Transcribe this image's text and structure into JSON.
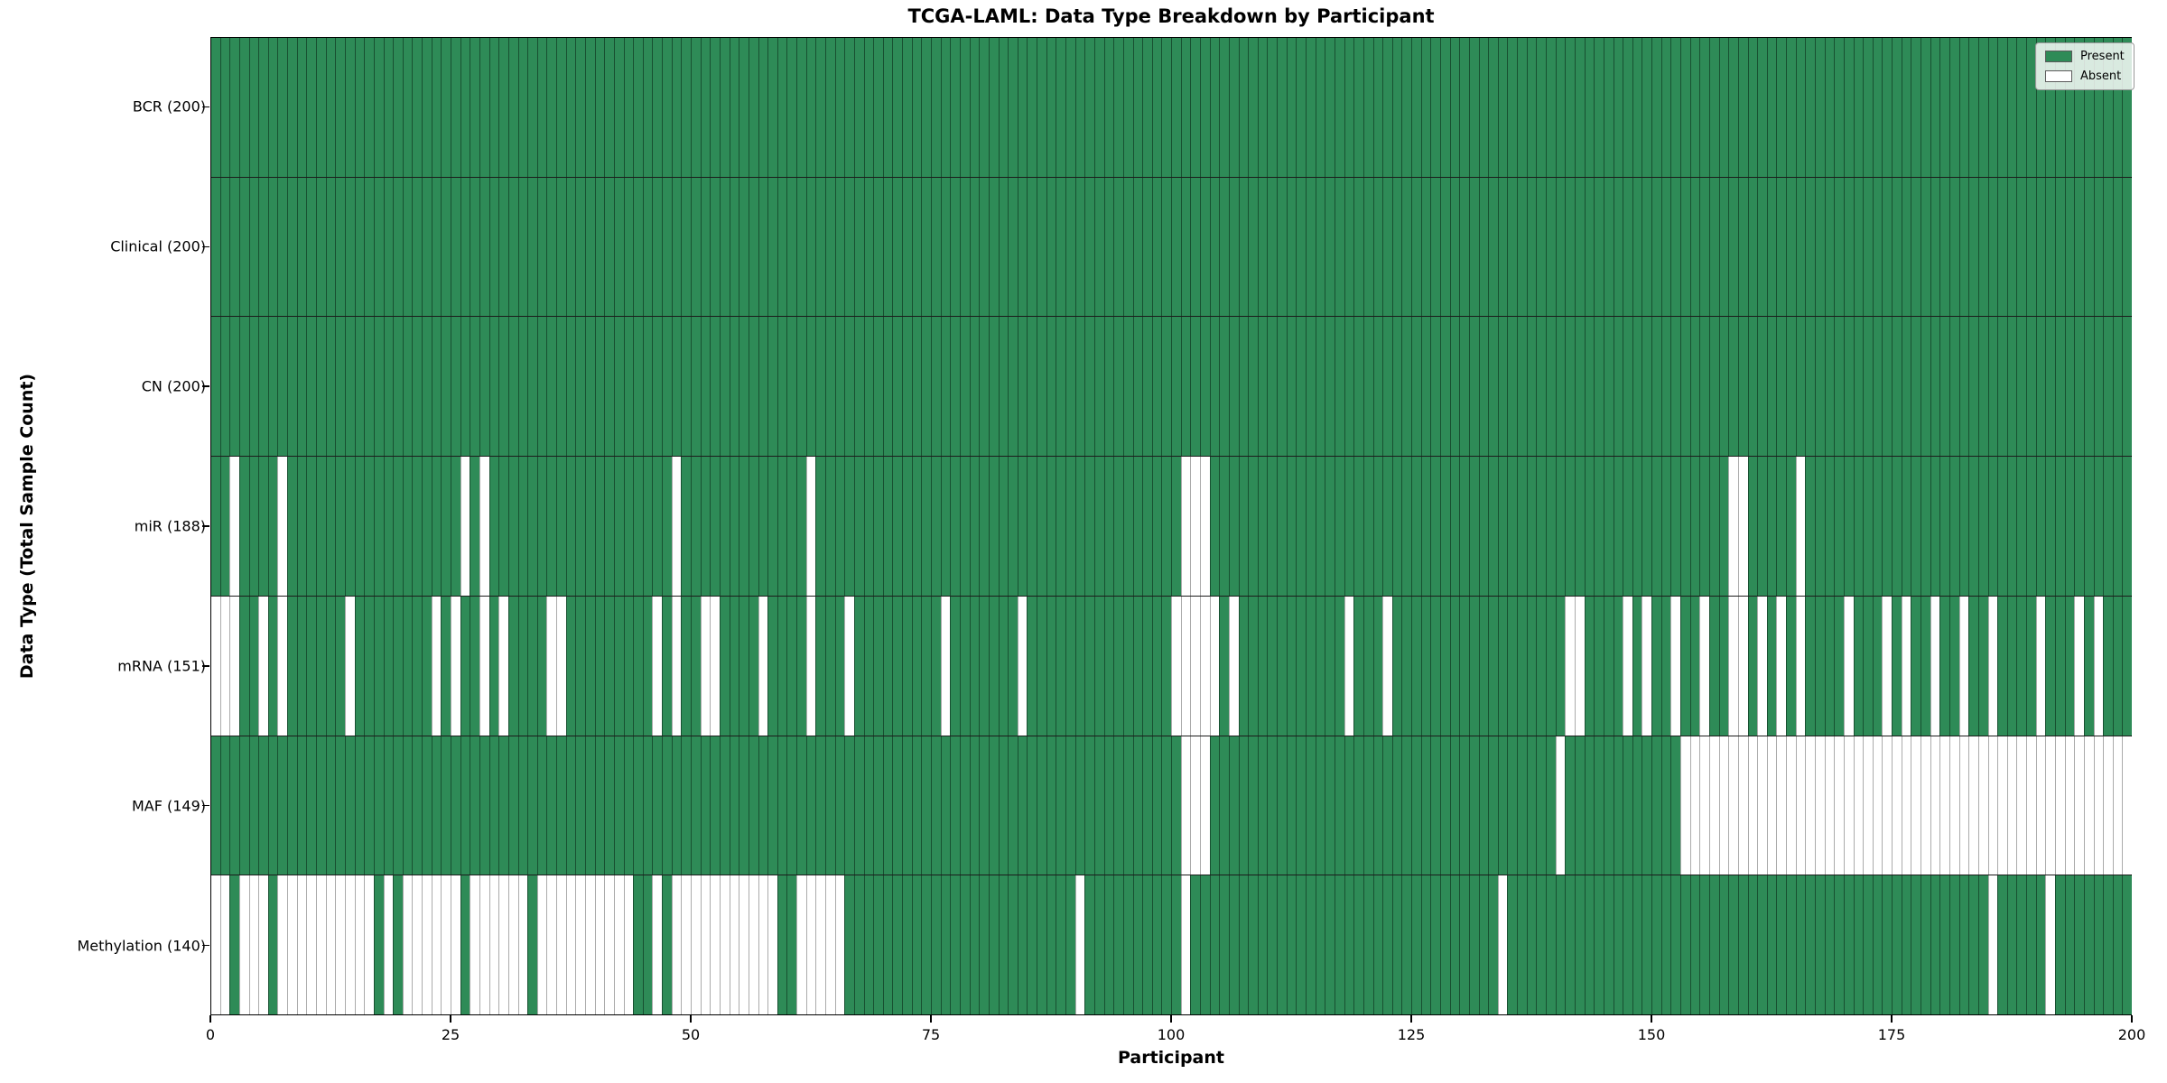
{
  "chart_data": {
    "type": "heatmap",
    "title": "TCGA-LAML: Data Type Breakdown by Participant",
    "xlabel": "Participant",
    "ylabel": "Data Type (Total Sample Count)",
    "x_range": [
      0,
      200
    ],
    "n_participants": 200,
    "xticks": [
      0,
      25,
      50,
      75,
      100,
      125,
      150,
      175,
      200
    ],
    "grid": false,
    "legend_position": "upper right",
    "legend": [
      {
        "label": "Present",
        "color": "#2E8B57"
      },
      {
        "label": "Absent",
        "color": "#FFFFFF"
      }
    ],
    "colors": {
      "present": "#2E8B57",
      "absent": "#FFFFFF",
      "cell_edge": "#1c3a28",
      "row_divider": "#1c1c1c"
    },
    "rows": [
      {
        "label": "BCR (200)",
        "data_type": "BCR",
        "present_count": 200,
        "absent_participants": []
      },
      {
        "label": "Clinical (200)",
        "data_type": "Clinical",
        "present_count": 200,
        "absent_participants": []
      },
      {
        "label": "CN (200)",
        "data_type": "CN",
        "present_count": 200,
        "absent_participants": []
      },
      {
        "label": "miR (188)",
        "data_type": "miR",
        "present_count": 188,
        "absent_participants": [
          2,
          7,
          26,
          28,
          48,
          62,
          101,
          102,
          103,
          158,
          159,
          165
        ]
      },
      {
        "label": "mRNA (151)",
        "data_type": "mRNA",
        "present_count": 151,
        "absent_participants": [
          0,
          1,
          2,
          5,
          7,
          14,
          23,
          25,
          28,
          30,
          35,
          36,
          46,
          48,
          51,
          52,
          57,
          62,
          66,
          76,
          84,
          100,
          101,
          102,
          103,
          104,
          106,
          118,
          122,
          141,
          142,
          147,
          149,
          152,
          155,
          158,
          159,
          161,
          163,
          165,
          170,
          174,
          176,
          179,
          182,
          185,
          190,
          194,
          196
        ]
      },
      {
        "label": "MAF (149)",
        "data_type": "MAF",
        "present_count": 149,
        "absent_participants": [
          101,
          102,
          103,
          140,
          153,
          154,
          155,
          156,
          157,
          158,
          159,
          160,
          161,
          162,
          163,
          164,
          165,
          166,
          167,
          168,
          169,
          170,
          171,
          172,
          173,
          174,
          175,
          176,
          177,
          178,
          179,
          180,
          181,
          182,
          183,
          184,
          185,
          186,
          187,
          188,
          189,
          190,
          191,
          192,
          193,
          194,
          195,
          196,
          197,
          198,
          199
        ]
      },
      {
        "label": "Methylation (140)",
        "data_type": "Methylation",
        "present_count": 140,
        "absent_participants": [
          0,
          1,
          3,
          4,
          5,
          7,
          8,
          9,
          10,
          11,
          12,
          13,
          14,
          15,
          16,
          18,
          20,
          21,
          22,
          23,
          24,
          25,
          27,
          28,
          29,
          30,
          31,
          32,
          34,
          35,
          36,
          37,
          38,
          39,
          40,
          41,
          42,
          43,
          46,
          48,
          49,
          50,
          51,
          52,
          53,
          54,
          55,
          56,
          57,
          58,
          61,
          62,
          63,
          64,
          65,
          90,
          101,
          134,
          185,
          191
        ]
      }
    ]
  }
}
